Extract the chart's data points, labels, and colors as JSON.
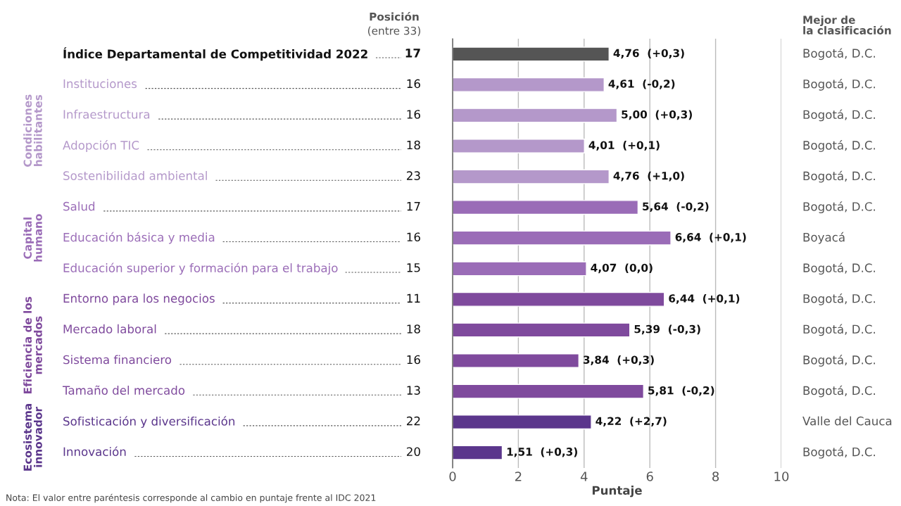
{
  "chart_data": {
    "type": "bar",
    "orientation": "horizontal",
    "categories": [
      "Índice Departamental de Competitividad 2022",
      "Instituciones",
      "Infraestructura",
      "Adopción TIC",
      "Sostenibilidad ambiental",
      "Salud",
      "Educación básica y media",
      "Educación superior y formación para el trabajo",
      "Entorno para los negocios",
      "Mercado laboral",
      "Sistema financiero",
      "Tamaño del mercado",
      "Sofisticación y diversificación",
      "Innovación"
    ],
    "values": [
      4.76,
      4.61,
      5.0,
      4.01,
      4.76,
      5.64,
      6.64,
      4.07,
      6.44,
      5.39,
      3.84,
      5.81,
      4.22,
      1.51
    ],
    "colors": [
      "#555555",
      "#b498ca",
      "#b498ca",
      "#b498ca",
      "#b498ca",
      "#9a6cb7",
      "#9a6cb7",
      "#9a6cb7",
      "#7f4a9d",
      "#7f4a9d",
      "#7f4a9d",
      "#7f4a9d",
      "#5b368c",
      "#5b368c"
    ],
    "value_labels": [
      "4,76  (+0,3)",
      "4,61  (-0,2)",
      "5,00  (+0,3)",
      "4,01  (+0,1)",
      "4,76  (+1,0)",
      "5,64  (-0,2)",
      "6,64  (+0,1)",
      "4,07  (0,0)",
      "6,44  (+0,1)",
      "5,39  (-0,3)",
      "3,84  (+0,3)",
      "5,81  (-0,2)",
      "4,22  (+2,7)",
      "1,51  (+0,3)"
    ],
    "xlim": [
      0,
      10
    ],
    "xticks": [
      0,
      2,
      4,
      6,
      8,
      10
    ],
    "xlabel": "Puntaje",
    "grid": "x",
    "tick_labels": "x",
    "annotations": [
      "Posición",
      "(entre 33)",
      "Mejor de\nla clasificación",
      "Nota: El valor entre paréntesis corresponde al cambio en puntaje frente al IDC 2021",
      "17",
      "16",
      "16",
      "18",
      "23",
      "17",
      "16",
      "15",
      "11",
      "18",
      "16",
      "13",
      "22",
      "20",
      "Bogotá, D.C.",
      "Bogotá, D.C.",
      "Bogotá, D.C.",
      "Bogotá, D.C.",
      "Bogotá, D.C.",
      "Bogotá, D.C.",
      "Boyacá",
      "Bogotá, D.C.",
      "Bogotá, D.C.",
      "Bogotá, D.C.",
      "Bogotá, D.C.",
      "Bogotá, D.C.",
      "Valle del Cauca",
      "Bogotá, D.C.",
      "Condiciones\nhabilitantes",
      "Capital\nhumano",
      "Eficiencia de los\nmercados",
      "Ecosistema\ninnovador"
    ]
  }
}
